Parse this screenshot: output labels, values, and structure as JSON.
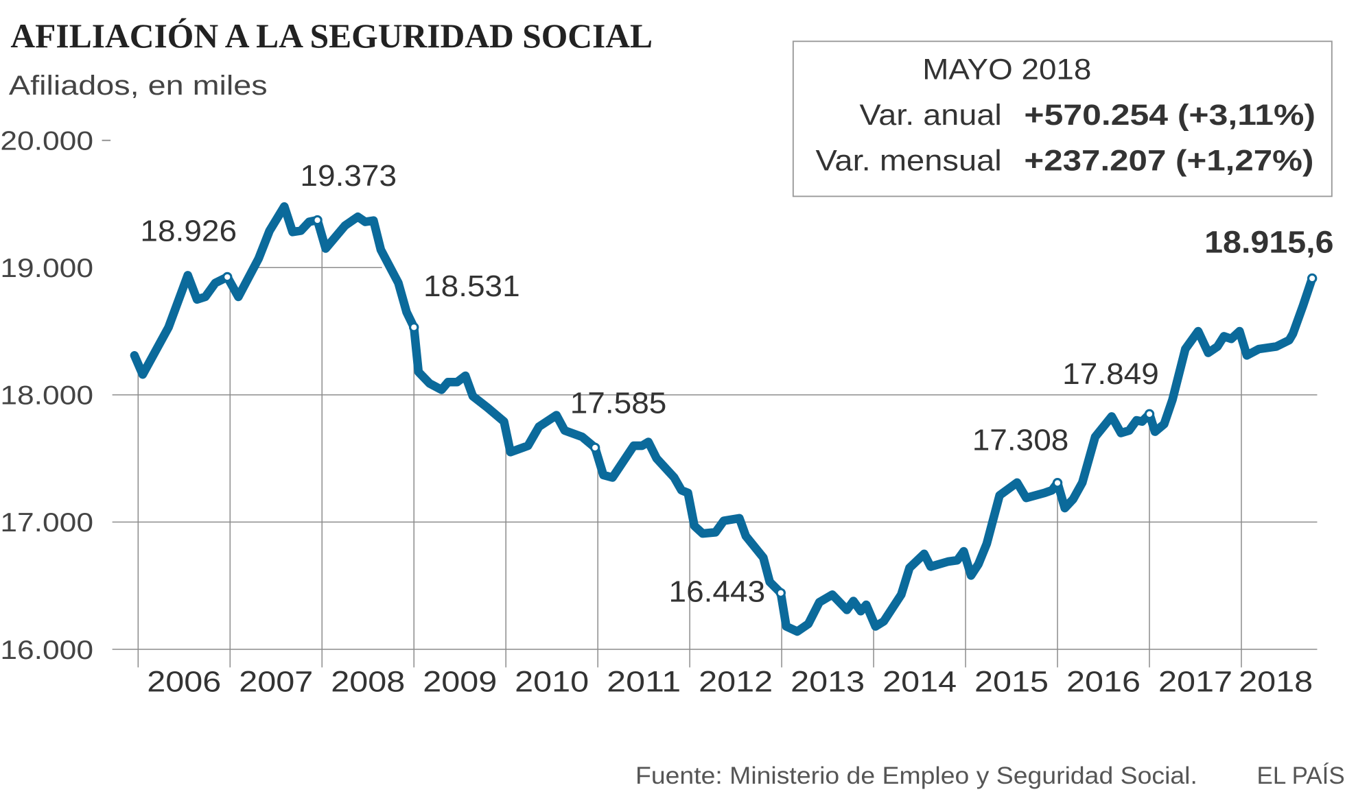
{
  "title": "AFILIACIÓN A LA SEGURIDAD SOCIAL",
  "subtitle": "Afiliados, en miles",
  "info_box": {
    "heading": "MAYO 2018",
    "rows": [
      {
        "label": "Var. anual",
        "value": "+570.254 (+3,11%)"
      },
      {
        "label": "Var. mensual",
        "value": "+237.207 (+1,27%)"
      }
    ]
  },
  "footer": {
    "source": "Fuente: Ministerio de Empleo y Seguridad Social.",
    "brand": "EL PAÍS"
  },
  "colors": {
    "line": "#0b6a9b",
    "text": "#333333",
    "grid": "#8c8c8c"
  },
  "chart_data": {
    "type": "line",
    "title": "AFILIACIÓN A LA SEGURIDAD SOCIAL",
    "ylabel": "Afiliados, en miles",
    "ylim": [
      16000,
      20000
    ],
    "yticks": [
      {
        "value": 20000,
        "label": "20.000"
      },
      {
        "value": 19000,
        "label": "19.000"
      },
      {
        "value": 18000,
        "label": "18.000"
      },
      {
        "value": 17000,
        "label": "17.000"
      },
      {
        "value": 16000,
        "label": "16.000"
      }
    ],
    "xticks": [
      "2006",
      "2007",
      "2008",
      "2009",
      "2010",
      "2011",
      "2012",
      "2013",
      "2014",
      "2015",
      "2016",
      "2017",
      "2018"
    ],
    "grid": true,
    "x": [
      2005.96,
      2006.05,
      2006.33,
      2006.54,
      2006.64,
      2006.73,
      2006.84,
      2006.97,
      2007.09,
      2007.31,
      2007.43,
      2007.59,
      2007.68,
      2007.77,
      2007.86,
      2007.95,
      2008.04,
      2008.25,
      2008.39,
      2008.47,
      2008.56,
      2008.64,
      2008.83,
      2008.92,
      2009.0,
      2009.05,
      2009.17,
      2009.3,
      2009.37,
      2009.47,
      2009.56,
      2009.64,
      2009.8,
      2009.98,
      2010.05,
      2010.24,
      2010.36,
      2010.55,
      2010.64,
      2010.83,
      2010.97,
      2011.06,
      2011.16,
      2011.39,
      2011.48,
      2011.55,
      2011.64,
      2011.83,
      2011.91,
      2011.98,
      2012.05,
      2012.14,
      2012.28,
      2012.37,
      2012.54,
      2012.61,
      2012.8,
      2012.87,
      2012.99,
      2013.05,
      2013.17,
      2013.29,
      2013.41,
      2013.55,
      2013.71,
      2013.78,
      2013.86,
      2013.92,
      2014.02,
      2014.11,
      2014.3,
      2014.39,
      2014.55,
      2014.62,
      2014.81,
      2014.91,
      2014.98,
      2015.06,
      2015.14,
      2015.23,
      2015.37,
      2015.56,
      2015.66,
      2015.86,
      2015.94,
      2016.0,
      2016.08,
      2016.17,
      2016.27,
      2016.41,
      2016.59,
      2016.69,
      2016.78,
      2016.86,
      2016.92,
      2017.0,
      2017.06,
      2017.16,
      2017.25,
      2017.39,
      2017.53,
      2017.64,
      2017.74,
      2017.81,
      2017.89,
      2017.98,
      2018.06,
      2018.19,
      2018.38,
      2018.52,
      2018.56,
      2018.67,
      2018.77
    ],
    "values": [
      18310,
      18160,
      18530,
      18940,
      18750,
      18770,
      18880,
      18926,
      18770,
      19070,
      19290,
      19480,
      19280,
      19290,
      19360,
      19373,
      19150,
      19330,
      19400,
      19360,
      19370,
      19140,
      18880,
      18650,
      18531,
      18180,
      18090,
      18040,
      18100,
      18100,
      18150,
      17990,
      17900,
      17790,
      17550,
      17600,
      17750,
      17840,
      17720,
      17670,
      17585,
      17370,
      17350,
      17600,
      17600,
      17630,
      17500,
      17350,
      17250,
      17230,
      16970,
      16910,
      16920,
      17010,
      17030,
      16890,
      16720,
      16530,
      16443,
      16180,
      16140,
      16200,
      16370,
      16430,
      16310,
      16380,
      16300,
      16350,
      16180,
      16220,
      16430,
      16640,
      16750,
      16650,
      16690,
      16700,
      16770,
      16580,
      16670,
      16830,
      17210,
      17310,
      17190,
      17230,
      17250,
      17308,
      17110,
      17180,
      17310,
      17670,
      17830,
      17700,
      17720,
      17800,
      17790,
      17849,
      17710,
      17770,
      17960,
      18360,
      18500,
      18330,
      18380,
      18460,
      18440,
      18500,
      18310,
      18360,
      18380,
      18430,
      18480,
      18700,
      18915.6
    ],
    "annotations": [
      {
        "x": 2006.97,
        "value": 18926,
        "label": "18.926"
      },
      {
        "x": 2007.95,
        "value": 19373,
        "label": "19.373"
      },
      {
        "x": 2009.0,
        "value": 18531,
        "label": "18.531"
      },
      {
        "x": 2010.97,
        "value": 17585,
        "label": "17.585"
      },
      {
        "x": 2012.99,
        "value": 16443,
        "label": "16.443"
      },
      {
        "x": 2016.0,
        "value": 17308,
        "label": "17.308"
      },
      {
        "x": 2017.0,
        "value": 17849,
        "label": "17.849"
      },
      {
        "x": 2018.77,
        "value": 18915.6,
        "label": "18.915,6",
        "bold": true
      }
    ]
  }
}
